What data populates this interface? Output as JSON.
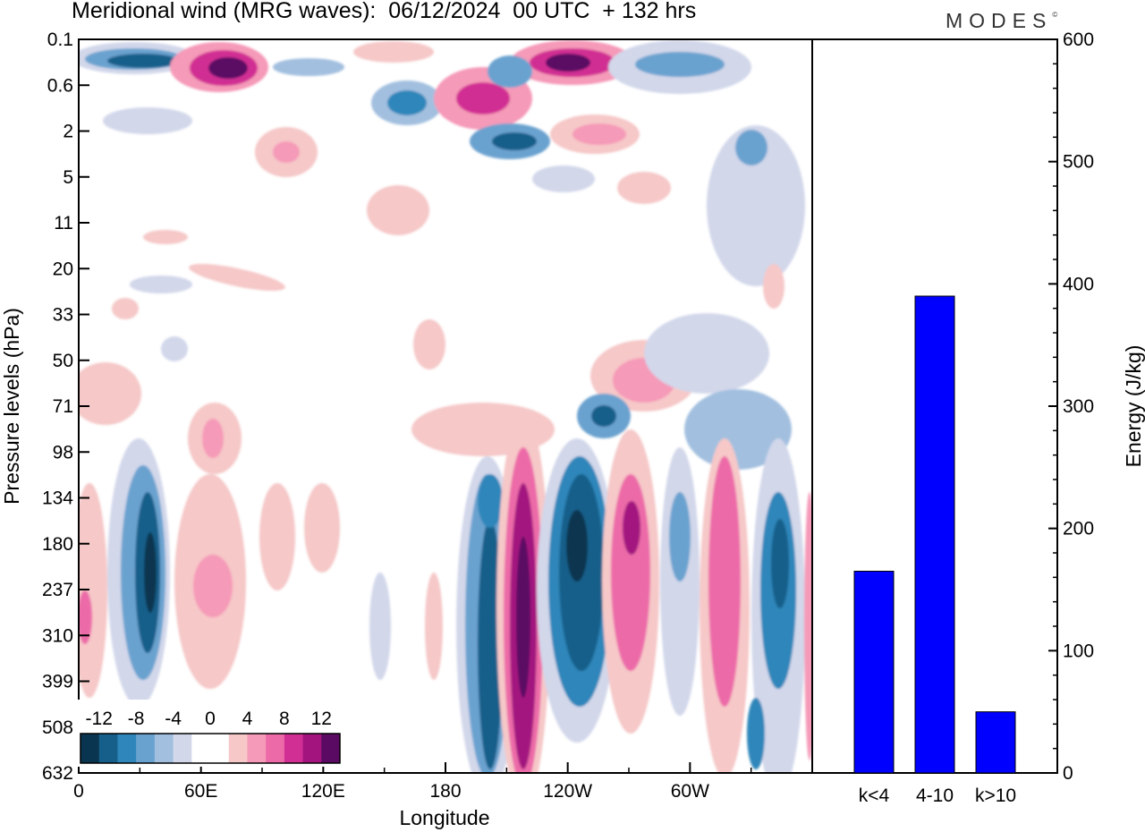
{
  "header": {
    "title": "Meridional wind (MRG waves):  06/12/2024  00 UTC  + 132 hrs",
    "logo": "MODES"
  },
  "chart_data": [
    {
      "type": "heatmap",
      "title": "Meridional wind (MRG waves):  06/12/2024  00 UTC  + 132 hrs",
      "xlabel": "Longitude",
      "ylabel": "Pressure levels (hPa)",
      "x_ticks": [
        "0",
        "60E",
        "120E",
        "180",
        "120W",
        "60W"
      ],
      "y_ticks": [
        "0.1",
        "0.6",
        "2",
        "5",
        "11",
        "20",
        "33",
        "50",
        "71",
        "98",
        "134",
        "180",
        "237",
        "310",
        "399",
        "508",
        "632"
      ],
      "colorbar": {
        "labels": [
          "-12",
          "-8",
          "-4",
          "0",
          "4",
          "8",
          "12"
        ],
        "colors": [
          "#0a3550",
          "#155f8a",
          "#2f86ba",
          "#6aa2cf",
          "#a2bfdf",
          "#d2d7ea",
          "#ffffff",
          "#ffffff",
          "#f6c8c8",
          "#f59ab8",
          "#ec6aa8",
          "#d12f93",
          "#a3147f",
          "#5a0a63"
        ]
      }
    },
    {
      "type": "bar",
      "categories": [
        "k<4",
        "4-10",
        "k>10"
      ],
      "values": [
        165,
        390,
        50
      ],
      "ylabel": "Energy (J/kg)",
      "ylim": [
        0,
        600
      ],
      "y_ticks": [
        "0",
        "100",
        "200",
        "300",
        "400",
        "500",
        "600"
      ],
      "color": "#0000ff"
    }
  ]
}
